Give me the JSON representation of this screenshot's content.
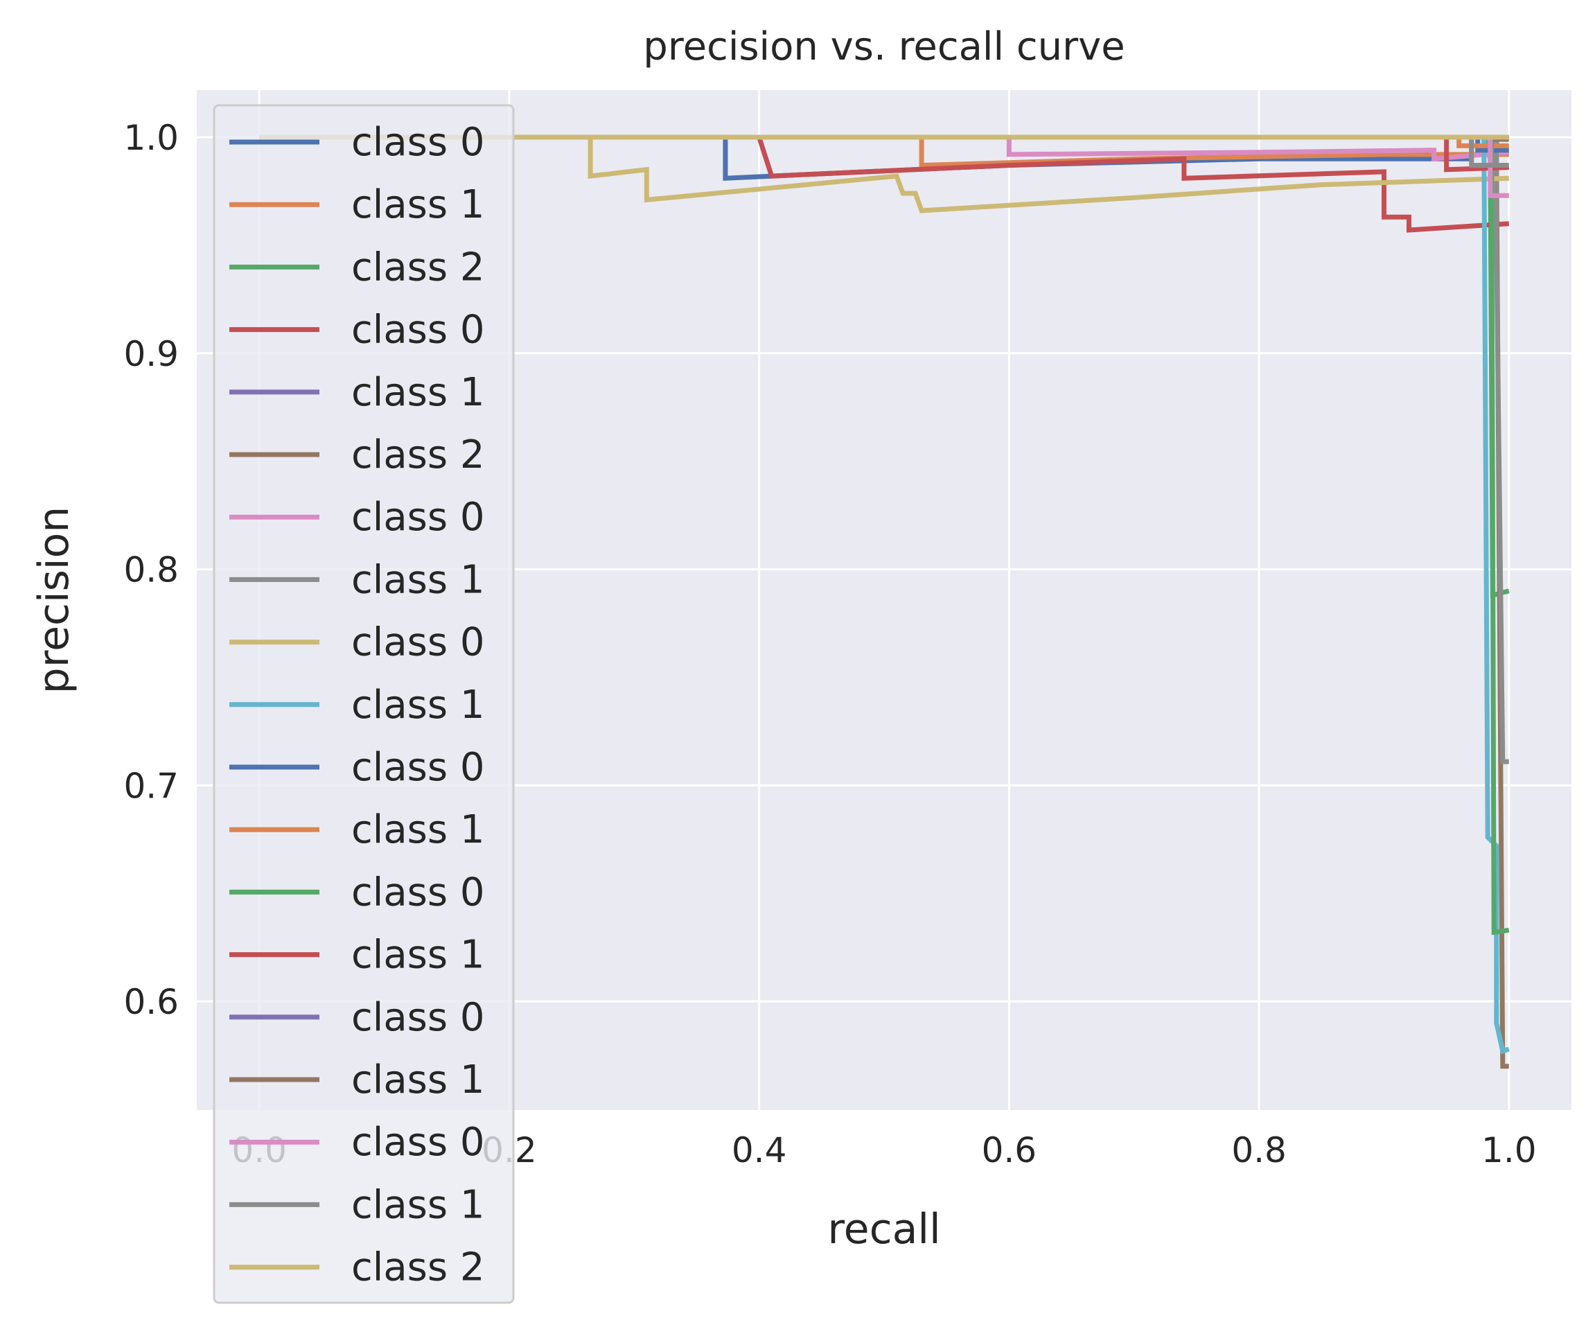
{
  "chart_data": {
    "type": "line",
    "title": "precision vs. recall curve",
    "xlabel": "recall",
    "ylabel": "precision",
    "xlim": [
      -0.05,
      1.05
    ],
    "ylim": [
      0.5497,
      1.0218
    ],
    "grid": true,
    "legend": "upper left",
    "x_ticks": [
      0.0,
      0.2,
      0.4,
      0.6,
      0.8,
      1.0
    ],
    "x_tick_labels": [
      "0.0",
      "0.2",
      "0.4",
      "0.6",
      "0.8",
      "1.0"
    ],
    "y_ticks": [
      0.6,
      0.7,
      0.8,
      0.9,
      1.0
    ],
    "y_tick_labels": [
      "0.6",
      "0.7",
      "0.8",
      "0.9",
      "1.0"
    ],
    "series": [
      {
        "name": "class 0",
        "color": "#4c72b0",
        "points": [
          [
            0,
            1
          ],
          [
            0.373,
            1
          ],
          [
            0.373,
            0.981
          ],
          [
            0.41,
            0.982
          ],
          [
            0.6,
            0.987
          ],
          [
            0.8,
            0.99
          ],
          [
            0.97,
            0.99
          ],
          [
            0.97,
            1
          ],
          [
            1,
            1
          ]
        ]
      },
      {
        "name": "class 1",
        "color": "#dd8452",
        "points": [
          [
            0,
            1
          ],
          [
            0.53,
            1
          ],
          [
            0.53,
            0.987
          ],
          [
            0.7,
            0.99
          ],
          [
            0.9,
            0.992
          ],
          [
            1,
            0.992
          ]
        ]
      },
      {
        "name": "class 2",
        "color": "#55a868",
        "points": [
          [
            0,
            1
          ],
          [
            0.98,
            1
          ],
          [
            0.985,
            0.99
          ],
          [
            0.987,
            0.788
          ],
          [
            1,
            0.79
          ]
        ]
      },
      {
        "name": "class 0",
        "color": "#c44e52",
        "points": [
          [
            0,
            1
          ],
          [
            0.4,
            1
          ],
          [
            0.41,
            0.982
          ],
          [
            0.6,
            0.987
          ],
          [
            0.74,
            0.99
          ],
          [
            0.74,
            0.981
          ],
          [
            0.9,
            0.984
          ],
          [
            0.9,
            0.963
          ],
          [
            0.92,
            0.963
          ],
          [
            0.92,
            0.957
          ],
          [
            1,
            0.96
          ]
        ]
      },
      {
        "name": "class 1",
        "color": "#8172b3",
        "points": [
          [
            0,
            1
          ],
          [
            1,
            1
          ]
        ]
      },
      {
        "name": "class 2",
        "color": "#937860",
        "points": [
          [
            0,
            1
          ],
          [
            0.99,
            1
          ],
          [
            0.99,
            0.99
          ],
          [
            0.995,
            0.57
          ],
          [
            1,
            0.57
          ]
        ]
      },
      {
        "name": "class 0",
        "color": "#da8bc3",
        "points": [
          [
            0,
            1
          ],
          [
            0.6,
            1
          ],
          [
            0.6,
            0.992
          ],
          [
            0.8,
            0.993
          ],
          [
            0.94,
            0.994
          ],
          [
            0.94,
            0.99
          ],
          [
            1,
            0.993
          ]
        ]
      },
      {
        "name": "class 1",
        "color": "#8c8c8c",
        "points": [
          [
            0,
            1
          ],
          [
            0.99,
            1
          ],
          [
            0.99,
            0.948
          ],
          [
            0.995,
            0.711
          ],
          [
            1,
            0.711
          ]
        ]
      },
      {
        "name": "class 0",
        "color": "#ccb974",
        "points": [
          [
            0,
            1
          ],
          [
            0.265,
            1
          ],
          [
            0.265,
            0.982
          ],
          [
            0.31,
            0.985
          ],
          [
            0.31,
            0.971
          ],
          [
            0.51,
            0.982
          ],
          [
            0.515,
            0.974
          ],
          [
            0.525,
            0.974
          ],
          [
            0.53,
            0.966
          ],
          [
            0.7,
            0.972
          ],
          [
            0.85,
            0.978
          ],
          [
            1,
            0.981
          ]
        ]
      },
      {
        "name": "class 1",
        "color": "#64b5cd",
        "points": [
          [
            0,
            1
          ],
          [
            0.98,
            1
          ],
          [
            0.983,
            0.676
          ],
          [
            0.99,
            0.672
          ],
          [
            0.99,
            0.59
          ],
          [
            0.995,
            0.577
          ],
          [
            1,
            0.578
          ]
        ]
      },
      {
        "name": "class 0",
        "color": "#4c72b0",
        "points": [
          [
            0,
            1
          ],
          [
            0.975,
            1
          ],
          [
            0.975,
            0.994
          ],
          [
            1,
            0.994
          ]
        ]
      },
      {
        "name": "class 1",
        "color": "#dd8452",
        "points": [
          [
            0,
            1
          ],
          [
            0.96,
            1
          ],
          [
            0.96,
            0.996
          ],
          [
            1,
            0.996
          ]
        ]
      },
      {
        "name": "class 0",
        "color": "#55a868",
        "points": [
          [
            0,
            1
          ],
          [
            0.986,
            1
          ],
          [
            0.988,
            0.632
          ],
          [
            1,
            0.633
          ]
        ]
      },
      {
        "name": "class 1",
        "color": "#c44e52",
        "points": [
          [
            0,
            1
          ],
          [
            0.95,
            1
          ],
          [
            0.95,
            0.985
          ],
          [
            1,
            0.986
          ]
        ]
      },
      {
        "name": "class 0",
        "color": "#8172b3",
        "points": [
          [
            0,
            1
          ],
          [
            1,
            1
          ]
        ]
      },
      {
        "name": "class 1",
        "color": "#937860",
        "points": [
          [
            0,
            1
          ],
          [
            0.985,
            1
          ],
          [
            0.985,
            0.999
          ],
          [
            1,
            0.999
          ]
        ]
      },
      {
        "name": "class 0",
        "color": "#da8bc3",
        "points": [
          [
            0,
            1
          ],
          [
            0.985,
            1
          ],
          [
            0.985,
            0.973
          ],
          [
            1,
            0.973
          ]
        ]
      },
      {
        "name": "class 1",
        "color": "#8c8c8c",
        "points": [
          [
            0,
            1
          ],
          [
            0.97,
            1
          ],
          [
            0.97,
            0.987
          ],
          [
            1,
            0.987
          ]
        ]
      },
      {
        "name": "class 2",
        "color": "#ccb974",
        "points": [
          [
            0,
            1
          ],
          [
            1,
            1
          ]
        ]
      }
    ]
  }
}
